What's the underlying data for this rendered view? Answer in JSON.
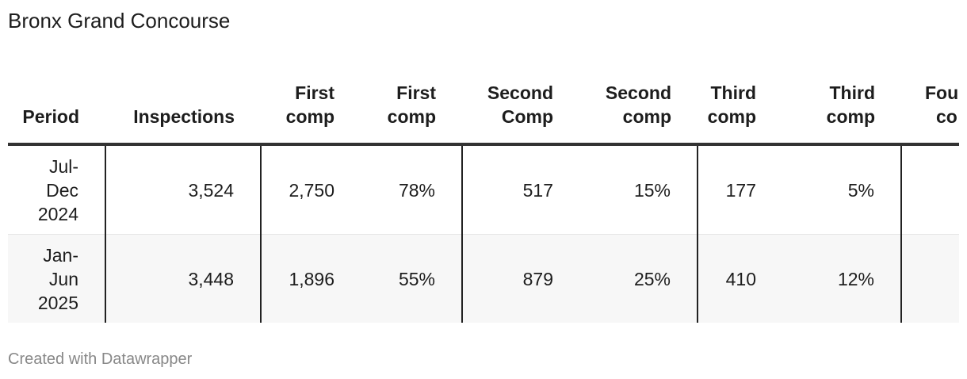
{
  "title": "Bronx Grand Concourse",
  "footer": "Created with Datawrapper",
  "chart_data": {
    "type": "table",
    "title": "Bronx Grand Concourse",
    "columns": [
      [
        "Period"
      ],
      [
        "Inspections"
      ],
      [
        "First",
        "comp"
      ],
      [
        "First",
        "comp"
      ],
      [
        "Second",
        "Comp"
      ],
      [
        "Second",
        "comp"
      ],
      [
        "Third",
        "comp"
      ],
      [
        "Third",
        "comp"
      ],
      [
        "Fou",
        "co"
      ]
    ],
    "rows": [
      {
        "period": [
          "Jul-",
          "Dec",
          "2024"
        ],
        "values": [
          "3,524",
          "2,750",
          "78%",
          "517",
          "15%",
          "177",
          "5%"
        ]
      },
      {
        "period": [
          "Jan-",
          "Jun",
          "2025"
        ],
        "values": [
          "3,448",
          "1,896",
          "55%",
          "879",
          "25%",
          "410",
          "12%"
        ]
      }
    ]
  }
}
